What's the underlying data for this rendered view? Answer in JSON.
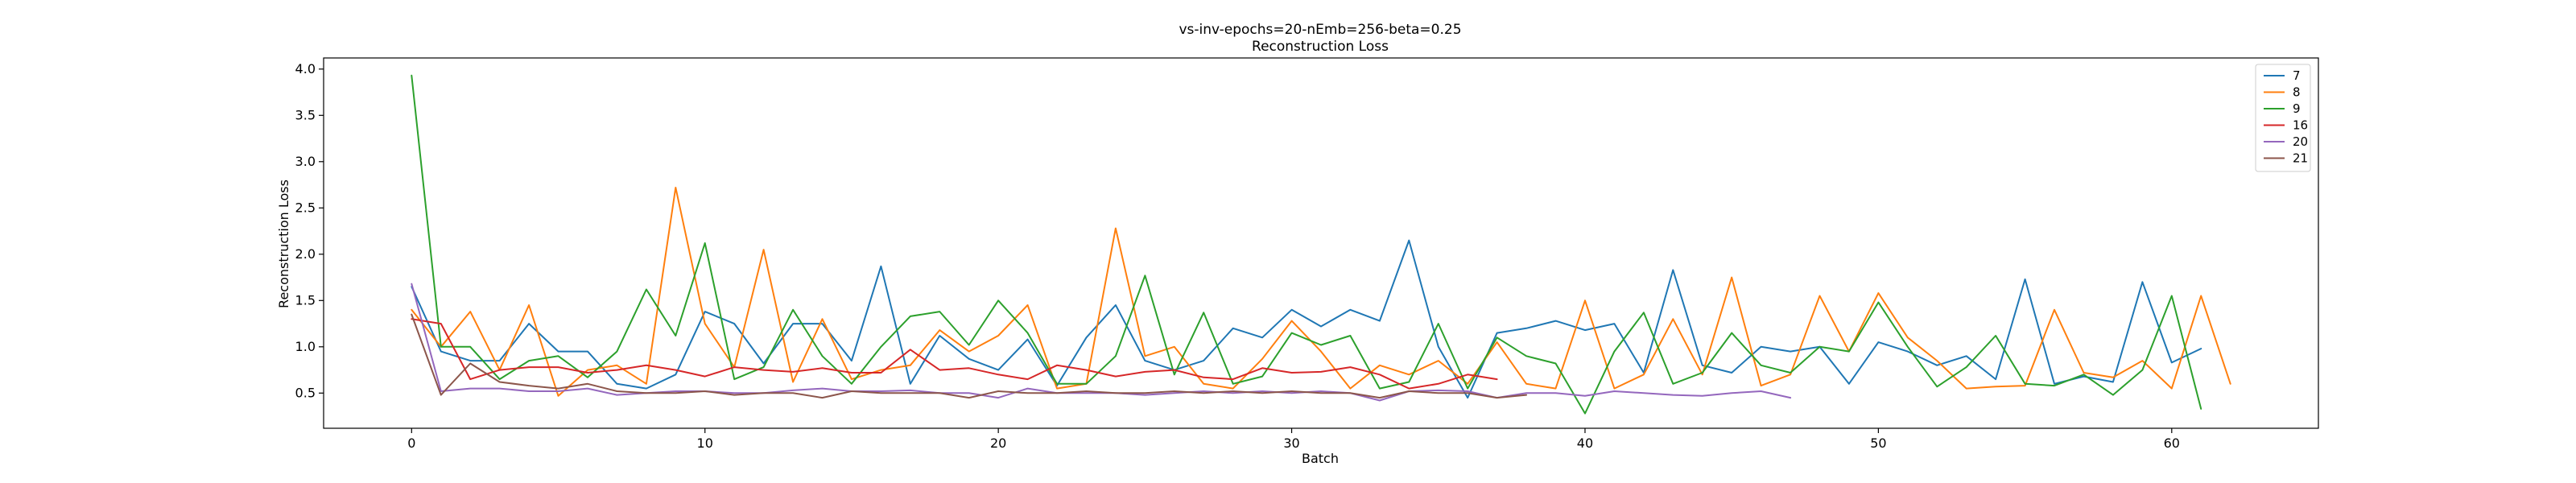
{
  "chart_data": {
    "type": "line",
    "title": "vs-inv-epochs=20-nEmb=256-beta=0.25",
    "subtitle": "Reconstruction Loss",
    "xlabel": "Batch",
    "ylabel": "Reconstruction Loss",
    "xlim": [
      -3,
      65
    ],
    "ylim": [
      0.12,
      4.12
    ],
    "xticks": [
      0,
      10,
      20,
      30,
      40,
      50,
      60
    ],
    "xtick_labels": [
      "0",
      "10",
      "20",
      "30",
      "40",
      "50",
      "60"
    ],
    "yticks": [
      0.5,
      1.0,
      1.5,
      2.0,
      2.5,
      3.0,
      3.5,
      4.0
    ],
    "ytick_labels": [
      "0.5",
      "1.0",
      "1.5",
      "2.0",
      "2.5",
      "3.0",
      "3.5",
      "4.0"
    ],
    "grid": false,
    "legend_position": "top-right",
    "series": [
      {
        "name": "7",
        "color": "#1f77b4",
        "values": [
          1.65,
          0.95,
          0.85,
          0.85,
          1.25,
          0.95,
          0.95,
          0.6,
          0.55,
          0.7,
          1.38,
          1.25,
          0.82,
          1.25,
          1.25,
          0.85,
          1.87,
          0.6,
          1.12,
          0.87,
          0.75,
          1.08,
          0.58,
          1.1,
          1.45,
          0.85,
          0.75,
          0.85,
          1.2,
          1.1,
          1.4,
          1.22,
          1.4,
          1.28,
          2.15,
          1.0,
          0.45,
          1.15,
          1.2,
          1.28,
          1.18,
          1.25,
          0.72,
          1.83,
          0.8,
          0.72,
          1.0,
          0.95,
          1.0,
          0.6,
          1.05,
          0.95,
          0.8,
          0.9,
          0.65,
          1.73,
          0.6,
          0.68,
          0.62,
          1.7,
          0.83,
          0.98
        ]
      },
      {
        "name": "8",
        "color": "#ff7f0e",
        "values": [
          1.4,
          1.0,
          1.38,
          0.75,
          1.45,
          0.47,
          0.75,
          0.8,
          0.6,
          2.72,
          1.25,
          0.78,
          2.05,
          0.62,
          1.3,
          0.65,
          0.75,
          0.8,
          1.18,
          0.95,
          1.12,
          1.45,
          0.55,
          0.6,
          2.28,
          0.9,
          1.0,
          0.6,
          0.55,
          0.87,
          1.28,
          0.95,
          0.55,
          0.8,
          0.7,
          0.85,
          0.6,
          1.05,
          0.6,
          0.55,
          1.5,
          0.55,
          0.7,
          1.3,
          0.7,
          1.75,
          0.58,
          0.7,
          1.55,
          0.95,
          1.58,
          1.1,
          0.85,
          0.55,
          0.57,
          0.58,
          1.4,
          0.72,
          0.67,
          0.85,
          0.55,
          1.55,
          0.6
        ]
      },
      {
        "name": "9",
        "color": "#2ca02c",
        "values": [
          3.93,
          1.0,
          1.0,
          0.65,
          0.85,
          0.9,
          0.67,
          0.95,
          1.62,
          1.12,
          2.12,
          0.65,
          0.78,
          1.4,
          0.9,
          0.6,
          1.0,
          1.33,
          1.38,
          1.02,
          1.5,
          1.15,
          0.6,
          0.6,
          0.9,
          1.77,
          0.7,
          1.37,
          0.6,
          0.68,
          1.15,
          1.02,
          1.12,
          0.55,
          0.62,
          1.25,
          0.55,
          1.1,
          0.9,
          0.82,
          0.28,
          0.95,
          1.37,
          0.6,
          0.72,
          1.15,
          0.8,
          0.72,
          1.0,
          0.95,
          1.48,
          1.0,
          0.57,
          0.78,
          1.12,
          0.6,
          0.58,
          0.7,
          0.48,
          0.75,
          1.55,
          0.33
        ]
      },
      {
        "name": "16",
        "color": "#d62728",
        "values": [
          1.3,
          1.25,
          0.65,
          0.75,
          0.78,
          0.78,
          0.72,
          0.75,
          0.8,
          0.75,
          0.68,
          0.78,
          0.75,
          0.73,
          0.77,
          0.72,
          0.72,
          0.97,
          0.75,
          0.77,
          0.7,
          0.65,
          0.8,
          0.75,
          0.68,
          0.73,
          0.75,
          0.67,
          0.65,
          0.77,
          0.72,
          0.73,
          0.78,
          0.7,
          0.55,
          0.6,
          0.7,
          0.65
        ]
      },
      {
        "name": "20",
        "color": "#9467bd",
        "values": [
          1.68,
          0.52,
          0.55,
          0.55,
          0.52,
          0.52,
          0.55,
          0.48,
          0.5,
          0.52,
          0.52,
          0.5,
          0.5,
          0.53,
          0.55,
          0.52,
          0.52,
          0.53,
          0.5,
          0.5,
          0.45,
          0.55,
          0.5,
          0.5,
          0.5,
          0.48,
          0.5,
          0.52,
          0.5,
          0.52,
          0.5,
          0.52,
          0.5,
          0.42,
          0.52,
          0.53,
          0.52,
          0.45,
          0.5,
          0.5,
          0.47,
          0.52,
          0.5,
          0.48,
          0.47,
          0.5,
          0.52,
          0.45
        ]
      },
      {
        "name": "21",
        "color": "#8c564b",
        "values": [
          1.35,
          0.48,
          0.82,
          0.62,
          0.58,
          0.55,
          0.6,
          0.52,
          0.5,
          0.5,
          0.52,
          0.48,
          0.5,
          0.5,
          0.45,
          0.52,
          0.5,
          0.5,
          0.5,
          0.45,
          0.52,
          0.5,
          0.5,
          0.52,
          0.5,
          0.5,
          0.52,
          0.5,
          0.52,
          0.5,
          0.52,
          0.5,
          0.5,
          0.45,
          0.52,
          0.5,
          0.5,
          0.45,
          0.48
        ]
      }
    ]
  }
}
